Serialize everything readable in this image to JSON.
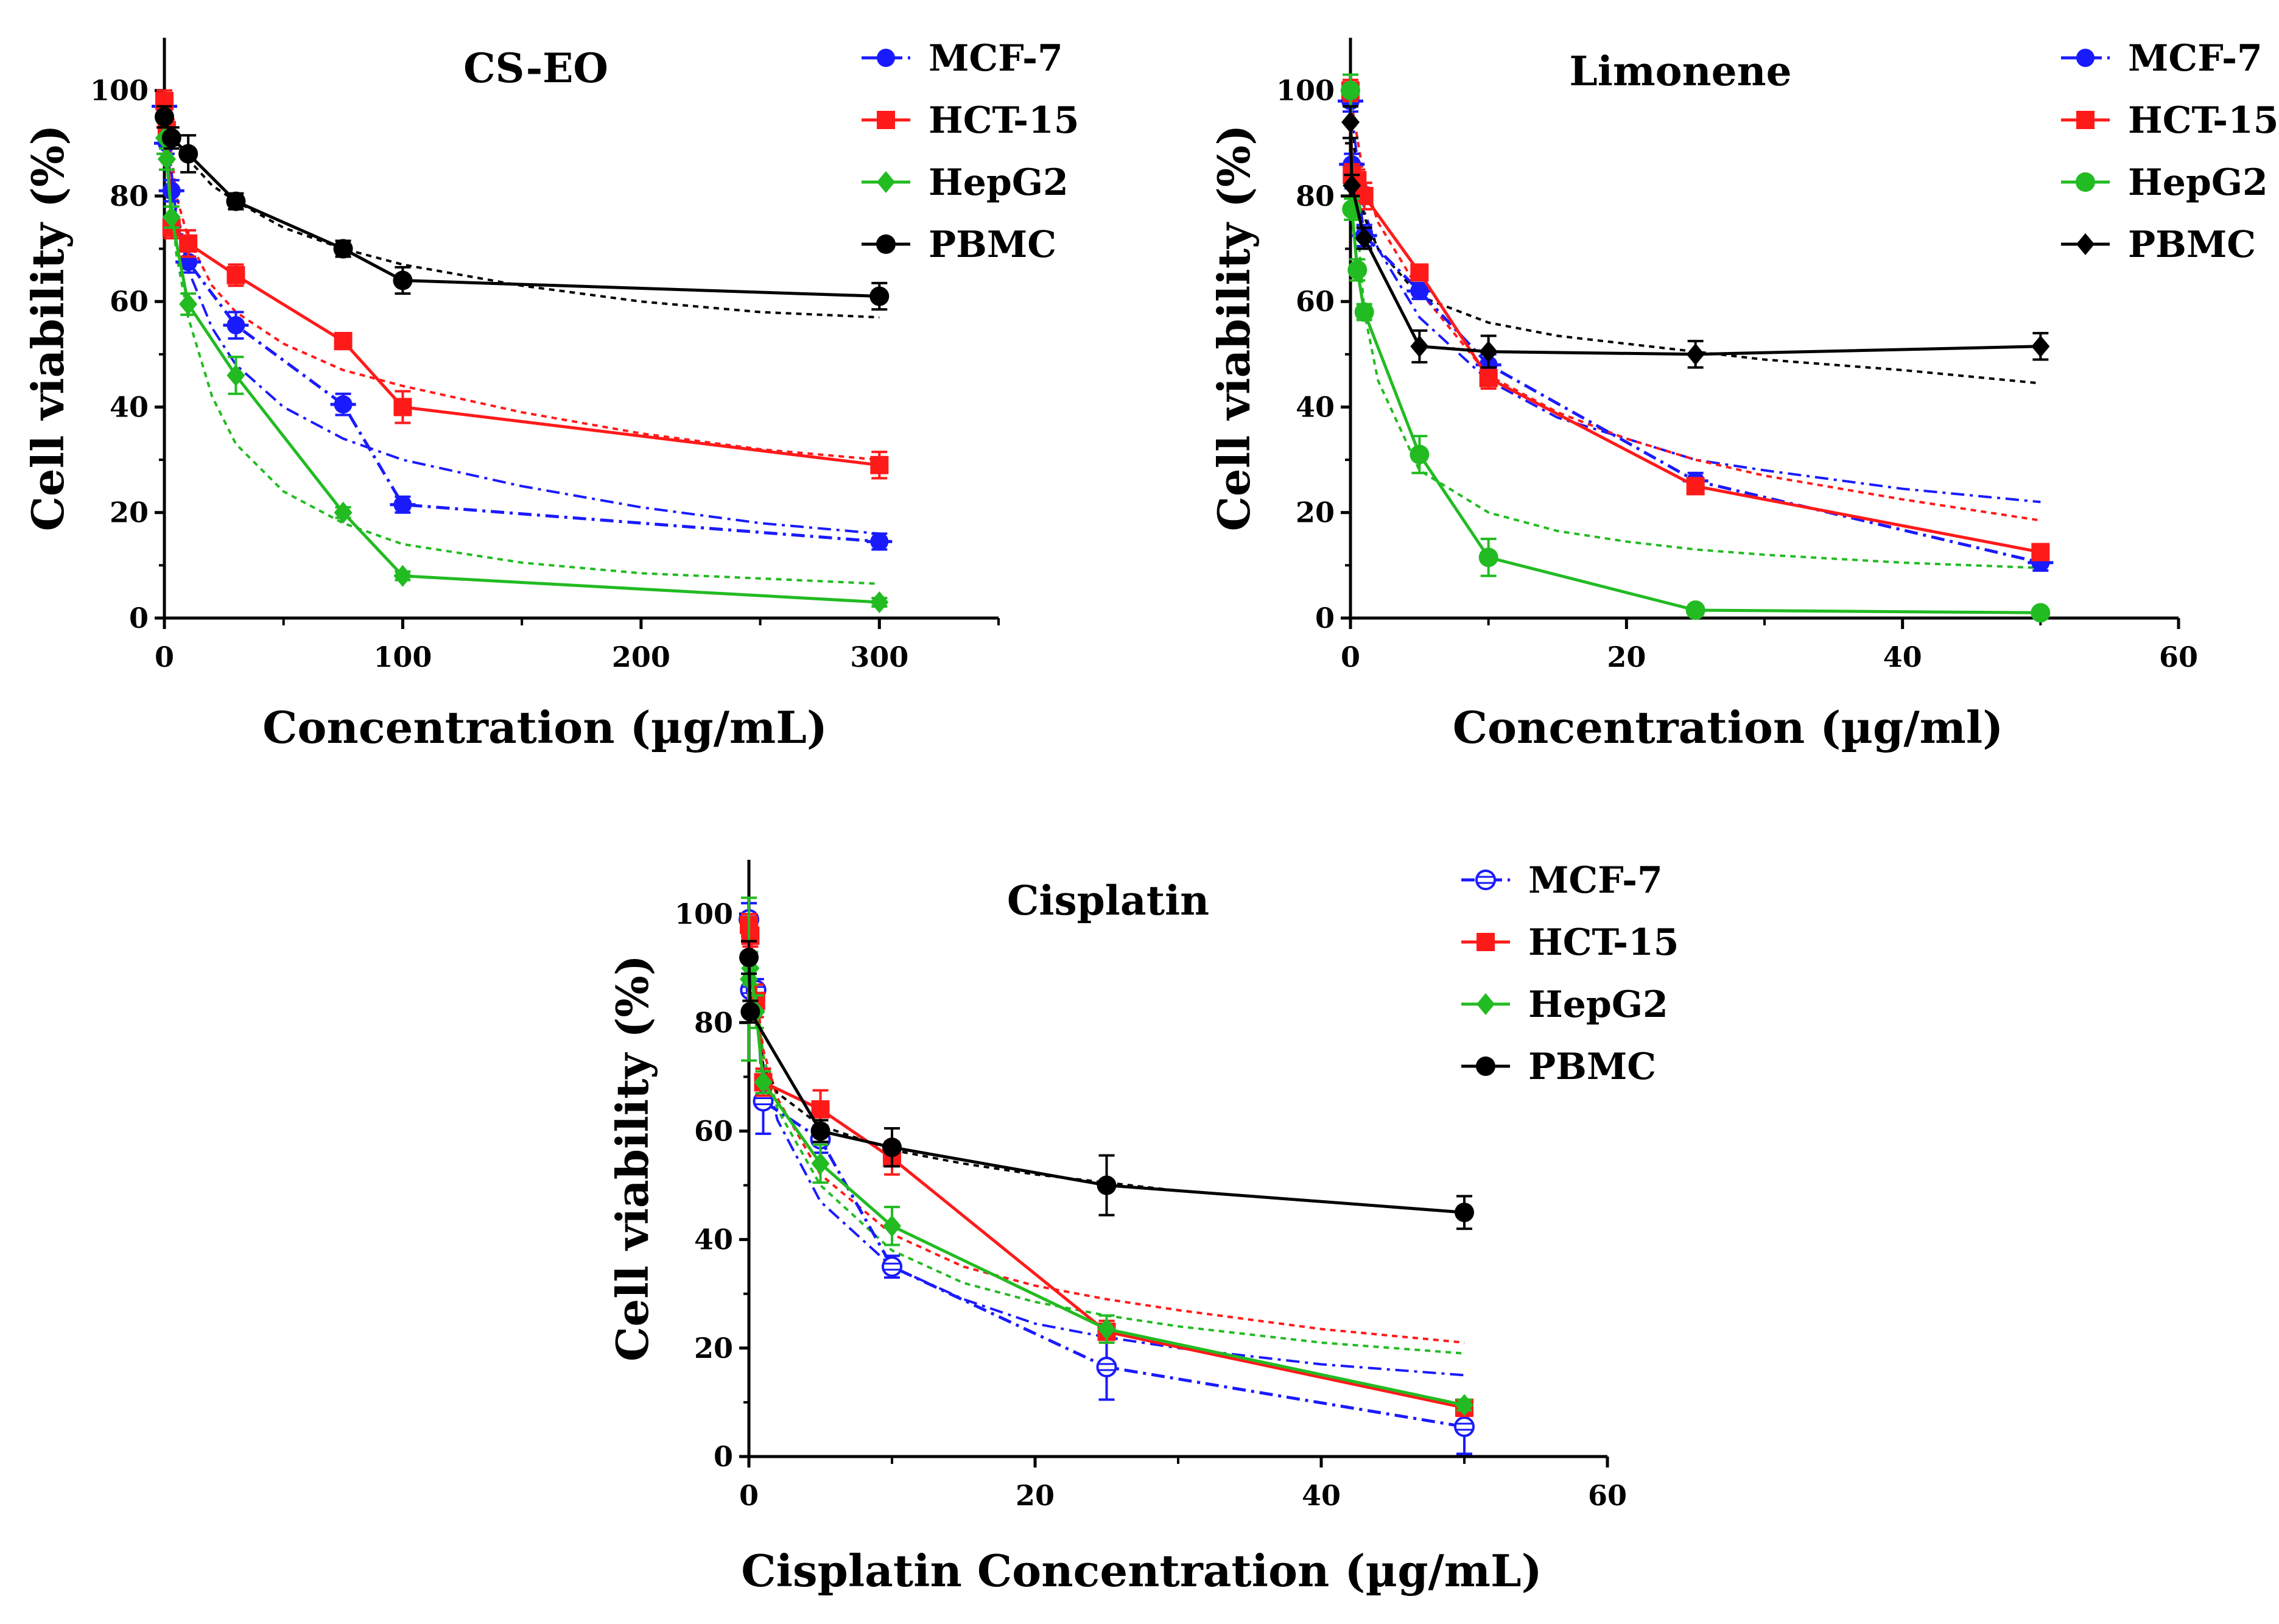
{
  "chart_data": [
    {
      "type": "line",
      "title": "CS-EO",
      "xlabel": "Concentration (µg/mL)",
      "ylabel": "Cell viability (%)",
      "xlim": [
        0,
        350
      ],
      "ylim": [
        0,
        110
      ],
      "xticks": [
        0,
        100,
        200,
        300
      ],
      "xticks_minor": [
        50,
        150,
        250,
        350
      ],
      "yticks": [
        0,
        20,
        40,
        60,
        80,
        100
      ],
      "legend_position": "top-right",
      "series": [
        {
          "name": "MCF-7",
          "color": "#1a1aff",
          "marker": "circle-cross",
          "dash": "dash-dot",
          "x": [
            0,
            1,
            3,
            10,
            30,
            75,
            100,
            300
          ],
          "y": [
            97,
            90,
            81,
            67.5,
            55.5,
            40.5,
            21.5,
            14.5
          ],
          "err": [
            2,
            2,
            2,
            2,
            2.5,
            2,
            1.5,
            1.5
          ]
        },
        {
          "name": "HCT-15",
          "color": "#ff1a1a",
          "marker": "square",
          "dash": "solid",
          "x": [
            0,
            1,
            3,
            10,
            30,
            75,
            100,
            300
          ],
          "y": [
            98,
            92.5,
            74,
            71,
            65,
            52.5,
            40,
            29
          ],
          "err": [
            2,
            2,
            2,
            2.5,
            2,
            1.5,
            3,
            2.5
          ]
        },
        {
          "name": "HepG2",
          "color": "#22bb22",
          "marker": "diamond",
          "dash": "solid",
          "x": [
            0,
            1,
            3,
            10,
            30,
            75,
            100,
            300
          ],
          "y": [
            91,
            87,
            76,
            59.5,
            46,
            20,
            8,
            3
          ],
          "err": [
            3,
            2,
            2,
            2,
            3.5,
            1,
            0.8,
            0.8
          ]
        },
        {
          "name": "PBMC",
          "color": "#000000",
          "marker": "circle",
          "dash": "solid",
          "x": [
            0,
            3,
            10,
            30,
            75,
            100,
            300
          ],
          "y": [
            95,
            91,
            88,
            79,
            70,
            64,
            61
          ],
          "err": [
            2,
            2,
            3.5,
            1.5,
            1.5,
            2.5,
            2.5
          ]
        }
      ],
      "fits": [
        {
          "series": "MCF-7",
          "color": "#1a1aff",
          "dash": "dash-dot",
          "x": [
            0.5,
            5,
            10,
            20,
            30,
            50,
            75,
            100,
            150,
            200,
            250,
            300
          ],
          "y": [
            95,
            76,
            66,
            55,
            48,
            40,
            34,
            30,
            25,
            21,
            18,
            16
          ]
        },
        {
          "series": "HCT-15",
          "color": "#ff1a1a",
          "dash": "dotted",
          "x": [
            0.5,
            5,
            10,
            20,
            30,
            50,
            75,
            100,
            150,
            200,
            250,
            300
          ],
          "y": [
            97,
            80,
            72,
            63,
            58,
            52,
            47,
            44,
            39,
            35,
            32,
            30
          ]
        },
        {
          "series": "HepG2",
          "color": "#22bb22",
          "dash": "dotted",
          "x": [
            0.5,
            5,
            10,
            20,
            30,
            50,
            75,
            100,
            150,
            200,
            250,
            300
          ],
          "y": [
            93,
            69,
            57,
            42,
            33,
            24,
            18,
            14,
            10.5,
            8.5,
            7.5,
            6.5
          ]
        },
        {
          "series": "PBMC",
          "color": "#000000",
          "dash": "dotted",
          "x": [
            0.5,
            5,
            10,
            20,
            30,
            50,
            75,
            100,
            150,
            200,
            250,
            300
          ],
          "y": [
            96,
            90,
            87,
            82,
            79,
            74,
            70,
            67,
            63,
            60,
            58,
            57
          ]
        }
      ]
    },
    {
      "type": "line",
      "title": "Limonene",
      "xlabel": "Concentration (µg/ml)",
      "ylabel": "Cell viability (%)",
      "xlim": [
        0,
        60
      ],
      "ylim": [
        0,
        110
      ],
      "xticks": [
        0,
        20,
        40,
        60
      ],
      "xticks_minor": [
        10,
        30,
        50
      ],
      "yticks": [
        0,
        20,
        40,
        60,
        80,
        100
      ],
      "legend_position": "top-right",
      "series": [
        {
          "name": "MCF-7",
          "color": "#1a1aff",
          "marker": "circle-cross",
          "dash": "dash-dot",
          "x": [
            0,
            0.1,
            0.5,
            1,
            5,
            10,
            25,
            50
          ],
          "y": [
            98,
            86,
            81.5,
            72.5,
            62,
            48,
            26,
            10.5
          ],
          "err": [
            2,
            2,
            2,
            2,
            1.5,
            2,
            1.5,
            1.5
          ]
        },
        {
          "name": "HCT-15",
          "color": "#ff1a1a",
          "marker": "square",
          "dash": "solid",
          "x": [
            0,
            0.1,
            0.5,
            1,
            5,
            10,
            25,
            50
          ],
          "y": [
            100,
            84,
            83,
            80,
            65.5,
            45.5,
            25,
            12.5
          ],
          "err": [
            2,
            2,
            2,
            2.5,
            1.5,
            2,
            1.5,
            1.5
          ]
        },
        {
          "name": "HepG2",
          "color": "#22bb22",
          "marker": "circle",
          "dash": "solid",
          "x": [
            0,
            0.1,
            0.5,
            1,
            5,
            10,
            25,
            50
          ],
          "y": [
            100,
            77.5,
            66,
            58,
            31,
            11.5,
            1.5,
            1
          ],
          "err": [
            3,
            2,
            2,
            1.5,
            3.5,
            3.5,
            0.8,
            0.8
          ]
        },
        {
          "name": "PBMC",
          "color": "#000000",
          "marker": "diamond",
          "dash": "solid",
          "x": [
            0,
            0.1,
            1,
            5,
            10,
            25,
            50
          ],
          "y": [
            94,
            82,
            72,
            51.5,
            50.5,
            50,
            51.5
          ],
          "err": [
            3,
            2,
            2,
            3,
            3,
            2.5,
            2.5
          ]
        }
      ],
      "fits": [
        {
          "series": "MCF-7",
          "color": "#1a1aff",
          "dash": "dash-dot",
          "x": [
            0.05,
            1,
            2,
            5,
            10,
            15,
            20,
            25,
            30,
            40,
            50
          ],
          "y": [
            96,
            77,
            70,
            57,
            45,
            38,
            34,
            30,
            28,
            24.5,
            22
          ]
        },
        {
          "series": "HCT-15",
          "color": "#ff1a1a",
          "dash": "dotted",
          "x": [
            0.05,
            1,
            2,
            5,
            10,
            15,
            20,
            25,
            30,
            40,
            50
          ],
          "y": [
            98,
            83,
            75,
            62,
            46,
            39,
            34,
            30,
            27,
            22.5,
            18.5
          ]
        },
        {
          "series": "HepG2",
          "color": "#22bb22",
          "dash": "dotted",
          "x": [
            0.05,
            1,
            2,
            5,
            10,
            15,
            20,
            25,
            30,
            40,
            50
          ],
          "y": [
            90,
            58,
            45,
            28,
            20,
            16.5,
            14.5,
            13,
            12,
            10.5,
            9.5
          ]
        },
        {
          "series": "PBMC",
          "color": "#000000",
          "dash": "dotted",
          "x": [
            0.05,
            1,
            2,
            5,
            10,
            15,
            20,
            25,
            30,
            40,
            50
          ],
          "y": [
            93,
            76,
            70,
            61,
            56,
            53.5,
            52,
            50.5,
            49,
            47,
            44.5
          ]
        }
      ]
    },
    {
      "type": "line",
      "title": "Cisplatin",
      "xlabel": "Cisplatin Concentration (µg/mL)",
      "ylabel": "Cell viability (%)",
      "xlim": [
        0,
        60
      ],
      "ylim": [
        0,
        110
      ],
      "xticks": [
        0,
        20,
        40,
        60
      ],
      "xticks_minor": [
        10,
        30,
        50
      ],
      "yticks": [
        0,
        20,
        40,
        60,
        80,
        100
      ],
      "legend_position": "top-right",
      "series": [
        {
          "name": "MCF-7",
          "color": "#1a1aff",
          "marker": "open-circle-lines",
          "dash": "dash-dot",
          "x": [
            0,
            0.1,
            0.5,
            1,
            5,
            10,
            25,
            50
          ],
          "y": [
            99,
            86,
            86,
            65.5,
            58.5,
            35,
            16.5,
            5.5
          ],
          "err": [
            3,
            2,
            2,
            6,
            2.5,
            2,
            6,
            5
          ]
        },
        {
          "name": "HCT-15",
          "color": "#ff1a1a",
          "marker": "square",
          "dash": "solid",
          "x": [
            0,
            0.1,
            0.5,
            1,
            5,
            10,
            25,
            50
          ],
          "y": [
            98,
            96,
            84,
            69,
            64,
            55,
            23,
            9
          ],
          "err": [
            2,
            2,
            3,
            2.5,
            3.5,
            3,
            2,
            1.5
          ]
        },
        {
          "name": "HepG2",
          "color": "#22bb22",
          "marker": "diamond",
          "dash": "solid",
          "x": [
            0,
            0.1,
            0.5,
            1,
            5,
            10,
            25,
            50
          ],
          "y": [
            88,
            90,
            82,
            69,
            54,
            42.5,
            23.5,
            9.5
          ],
          "err": [
            15,
            3,
            3,
            2,
            3.5,
            3.5,
            2.5,
            1
          ]
        },
        {
          "name": "PBMC",
          "color": "#000000",
          "marker": "circle",
          "dash": "solid",
          "x": [
            0,
            0.1,
            5,
            10,
            25,
            50
          ],
          "y": [
            92,
            82,
            60,
            57,
            50,
            45
          ],
          "err": [
            3,
            2,
            2,
            3.5,
            5.5,
            3
          ]
        }
      ],
      "fits": [
        {
          "series": "MCF-7",
          "color": "#1a1aff",
          "dash": "dash-dot",
          "x": [
            0.05,
            1,
            2,
            5,
            10,
            15,
            20,
            25,
            30,
            40,
            50
          ],
          "y": [
            98,
            72,
            62,
            47,
            35,
            29,
            24.5,
            22,
            20,
            17,
            15
          ]
        },
        {
          "series": "HCT-15",
          "color": "#ff1a1a",
          "dash": "dotted",
          "x": [
            0.05,
            1,
            2,
            5,
            10,
            15,
            20,
            25,
            30,
            40,
            50
          ],
          "y": [
            96,
            75,
            66,
            52,
            41,
            35,
            31.5,
            29,
            27,
            23.5,
            21
          ]
        },
        {
          "series": "HepG2",
          "color": "#22bb22",
          "dash": "dotted",
          "x": [
            0.05,
            1,
            2,
            5,
            10,
            15,
            20,
            25,
            30,
            40,
            50
          ],
          "y": [
            95,
            74,
            64,
            50,
            38,
            32,
            28.5,
            26,
            24,
            21,
            19
          ]
        },
        {
          "series": "PBMC",
          "color": "#000000",
          "dash": "dotted",
          "x": [
            0.05,
            1,
            2,
            5,
            10,
            15,
            20,
            25,
            30,
            40,
            50
          ],
          "y": [
            90,
            72,
            67,
            61,
            56.5,
            54,
            52,
            50.5,
            49,
            47,
            45
          ]
        }
      ]
    }
  ]
}
